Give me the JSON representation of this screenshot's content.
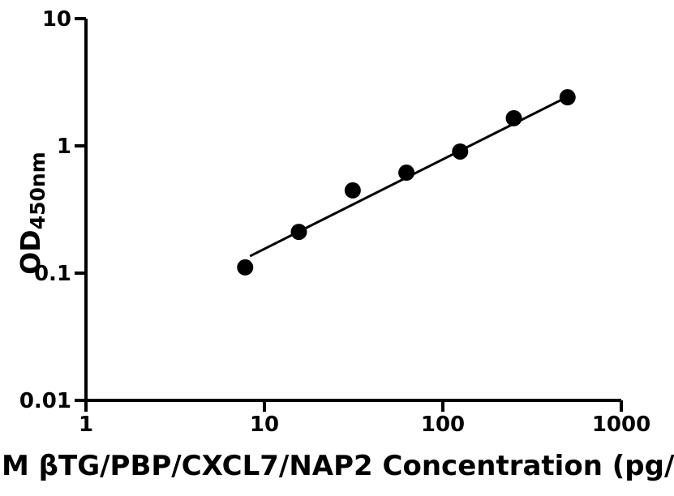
{
  "chart_data": {
    "type": "scatter",
    "title": "",
    "xlabel": "M βTG/PBP/CXCL7/NAP2 Concentration (pg/",
    "ylabel_main": "OD",
    "ylabel_sub": "450nm",
    "x_scale": "log",
    "y_scale": "log",
    "xlim": [
      1,
      1000
    ],
    "ylim": [
      0.01,
      10
    ],
    "x_ticks": [
      {
        "value": 1,
        "label": "1"
      },
      {
        "value": 10,
        "label": "10"
      },
      {
        "value": 100,
        "label": "100"
      },
      {
        "value": 1000,
        "label": "1000"
      }
    ],
    "y_ticks": [
      {
        "value": 10,
        "label": "10"
      },
      {
        "value": 1,
        "label": "1"
      },
      {
        "value": 0.1,
        "label": "0.1"
      },
      {
        "value": 0.01,
        "label": "0.01"
      }
    ],
    "points": [
      {
        "x": 7.8,
        "y": 0.111
      },
      {
        "x": 15.6,
        "y": 0.211
      },
      {
        "x": 31.25,
        "y": 0.447
      },
      {
        "x": 62.5,
        "y": 0.616
      },
      {
        "x": 125,
        "y": 0.903
      },
      {
        "x": 250,
        "y": 1.65
      },
      {
        "x": 500,
        "y": 2.41
      }
    ],
    "fit_line": {
      "x1": 8.3,
      "y1": 0.136,
      "x2": 505,
      "y2": 2.45
    },
    "marker": {
      "shape": "circle",
      "radius": 10,
      "color": "#000000"
    },
    "line_color": "#000000",
    "axis_color": "#000000",
    "background_color": "#ffffff",
    "grid": false,
    "legend": null
  }
}
